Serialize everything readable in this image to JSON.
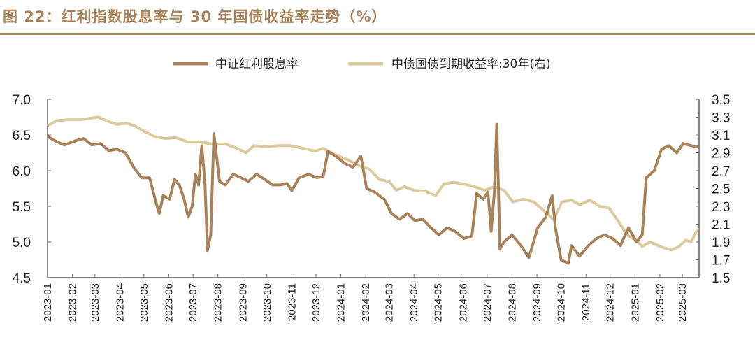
{
  "title": "图 22：红利指数股息率与 30 年国债收益率走势（%）",
  "chart_data": {
    "type": "line",
    "title": "图 22：红利指数股息率与 30 年国债收益率走势（%）",
    "legend_position": "top",
    "grid": false,
    "x_ticks": [
      "2023-01",
      "2023-02",
      "2023-03",
      "2023-04",
      "2023-05",
      "2023-06",
      "2023-07",
      "2023-08",
      "2023-09",
      "2023-10",
      "2023-11",
      "2023-12",
      "2024-01",
      "2024-02",
      "2024-03",
      "2024-04",
      "2024-05",
      "2024-06",
      "2024-07",
      "2024-08",
      "2024-09",
      "2024-10",
      "2024-11",
      "2024-12",
      "2025-01",
      "2025-02",
      "2025-03"
    ],
    "xlim": [
      "2023-01-01",
      "2025-03-20"
    ],
    "y_left": {
      "lim": [
        4.5,
        7.0
      ],
      "ticks": [
        "4.5",
        "5.0",
        "5.5",
        "6.0",
        "6.5",
        "7.0"
      ]
    },
    "y_right": {
      "lim": [
        1.5,
        3.5
      ],
      "ticks": [
        "1.5",
        "1.7",
        "1.9",
        "2.1",
        "2.3",
        "2.5",
        "2.7",
        "2.9",
        "3.1",
        "3.3",
        "3.5"
      ]
    },
    "series": [
      {
        "name": "中证红利股息率",
        "axis": "left",
        "color": "#a8835a",
        "points": [
          [
            "2023-01-01",
            6.48
          ],
          [
            "2023-01-10",
            6.42
          ],
          [
            "2023-01-22",
            6.36
          ],
          [
            "2023-02-05",
            6.42
          ],
          [
            "2023-02-15",
            6.45
          ],
          [
            "2023-02-25",
            6.36
          ],
          [
            "2023-03-08",
            6.38
          ],
          [
            "2023-03-18",
            6.28
          ],
          [
            "2023-03-28",
            6.3
          ],
          [
            "2023-04-08",
            6.25
          ],
          [
            "2023-04-18",
            6.05
          ],
          [
            "2023-04-28",
            5.9
          ],
          [
            "2023-05-08",
            5.9
          ],
          [
            "2023-05-16",
            5.55
          ],
          [
            "2023-05-20",
            5.4
          ],
          [
            "2023-05-25",
            5.65
          ],
          [
            "2023-06-02",
            5.6
          ],
          [
            "2023-06-08",
            5.88
          ],
          [
            "2023-06-14",
            5.8
          ],
          [
            "2023-06-20",
            5.6
          ],
          [
            "2023-06-25",
            5.35
          ],
          [
            "2023-06-30",
            5.5
          ],
          [
            "2023-07-04",
            5.95
          ],
          [
            "2023-07-08",
            5.8
          ],
          [
            "2023-07-12",
            6.35
          ],
          [
            "2023-07-16",
            5.8
          ],
          [
            "2023-07-19",
            4.88
          ],
          [
            "2023-07-23",
            5.1
          ],
          [
            "2023-07-27",
            6.52
          ],
          [
            "2023-08-03",
            5.85
          ],
          [
            "2023-08-10",
            5.8
          ],
          [
            "2023-08-20",
            5.95
          ],
          [
            "2023-08-30",
            5.9
          ],
          [
            "2023-09-08",
            5.85
          ],
          [
            "2023-09-18",
            5.95
          ],
          [
            "2023-09-28",
            5.88
          ],
          [
            "2023-10-08",
            5.8
          ],
          [
            "2023-10-18",
            5.8
          ],
          [
            "2023-10-26",
            5.82
          ],
          [
            "2023-11-01",
            5.72
          ],
          [
            "2023-11-10",
            5.9
          ],
          [
            "2023-11-22",
            5.95
          ],
          [
            "2023-12-02",
            5.9
          ],
          [
            "2023-12-10",
            5.92
          ],
          [
            "2023-12-16",
            6.27
          ],
          [
            "2023-12-26",
            6.2
          ],
          [
            "2024-01-06",
            6.1
          ],
          [
            "2024-01-16",
            6.05
          ],
          [
            "2024-01-26",
            6.2
          ],
          [
            "2024-02-02",
            5.75
          ],
          [
            "2024-02-12",
            5.7
          ],
          [
            "2024-02-24",
            5.6
          ],
          [
            "2024-03-04",
            5.4
          ],
          [
            "2024-03-14",
            5.32
          ],
          [
            "2024-03-24",
            5.4
          ],
          [
            "2024-04-02",
            5.3
          ],
          [
            "2024-04-12",
            5.32
          ],
          [
            "2024-04-22",
            5.2
          ],
          [
            "2024-05-02",
            5.1
          ],
          [
            "2024-05-12",
            5.2
          ],
          [
            "2024-05-22",
            5.15
          ],
          [
            "2024-06-02",
            5.05
          ],
          [
            "2024-06-12",
            5.08
          ],
          [
            "2024-06-18",
            5.68
          ],
          [
            "2024-06-26",
            5.6
          ],
          [
            "2024-07-02",
            5.7
          ],
          [
            "2024-07-06",
            5.15
          ],
          [
            "2024-07-10",
            5.7
          ],
          [
            "2024-07-13",
            6.65
          ],
          [
            "2024-07-17",
            4.9
          ],
          [
            "2024-07-22",
            5.0
          ],
          [
            "2024-08-01",
            5.1
          ],
          [
            "2024-08-12",
            4.95
          ],
          [
            "2024-08-22",
            4.78
          ],
          [
            "2024-09-02",
            5.2
          ],
          [
            "2024-09-12",
            5.35
          ],
          [
            "2024-09-20",
            5.65
          ],
          [
            "2024-09-24",
            5.2
          ],
          [
            "2024-10-01",
            4.75
          ],
          [
            "2024-10-10",
            4.7
          ],
          [
            "2024-10-14",
            4.95
          ],
          [
            "2024-10-24",
            4.8
          ],
          [
            "2024-11-04",
            4.95
          ],
          [
            "2024-11-14",
            5.05
          ],
          [
            "2024-11-24",
            5.1
          ],
          [
            "2024-12-04",
            5.05
          ],
          [
            "2024-12-14",
            4.95
          ],
          [
            "2024-12-24",
            5.2
          ],
          [
            "2025-01-03",
            5.0
          ],
          [
            "2025-01-10",
            5.1
          ],
          [
            "2025-01-15",
            5.9
          ],
          [
            "2025-01-25",
            6.0
          ],
          [
            "2025-02-03",
            6.3
          ],
          [
            "2025-02-12",
            6.35
          ],
          [
            "2025-02-22",
            6.25
          ],
          [
            "2025-03-02",
            6.38
          ],
          [
            "2025-03-12",
            6.35
          ],
          [
            "2025-03-20",
            6.33
          ]
        ]
      },
      {
        "name": "中债国债到期收益率:30年(右)",
        "axis": "right",
        "color": "#dcc99c",
        "points": [
          [
            "2023-01-01",
            3.2
          ],
          [
            "2023-01-12",
            3.26
          ],
          [
            "2023-01-25",
            3.27
          ],
          [
            "2023-02-10",
            3.27
          ],
          [
            "2023-02-25",
            3.29
          ],
          [
            "2023-03-05",
            3.3
          ],
          [
            "2023-03-18",
            3.25
          ],
          [
            "2023-03-28",
            3.22
          ],
          [
            "2023-04-10",
            3.23
          ],
          [
            "2023-04-20",
            3.2
          ],
          [
            "2023-05-01",
            3.14
          ],
          [
            "2023-05-15",
            3.08
          ],
          [
            "2023-05-28",
            3.06
          ],
          [
            "2023-06-10",
            3.07
          ],
          [
            "2023-06-25",
            3.02
          ],
          [
            "2023-07-10",
            3.02
          ],
          [
            "2023-07-25",
            3.0
          ],
          [
            "2023-08-10",
            3.0
          ],
          [
            "2023-08-25",
            2.95
          ],
          [
            "2023-09-05",
            2.9
          ],
          [
            "2023-09-15",
            2.98
          ],
          [
            "2023-09-30",
            2.97
          ],
          [
            "2023-10-15",
            2.98
          ],
          [
            "2023-10-30",
            2.98
          ],
          [
            "2023-11-15",
            2.95
          ],
          [
            "2023-11-30",
            2.92
          ],
          [
            "2023-12-10",
            2.95
          ],
          [
            "2023-12-25",
            2.88
          ],
          [
            "2024-01-10",
            2.82
          ],
          [
            "2024-01-25",
            2.75
          ],
          [
            "2024-02-05",
            2.72
          ],
          [
            "2024-02-18",
            2.6
          ],
          [
            "2024-03-01",
            2.58
          ],
          [
            "2024-03-10",
            2.48
          ],
          [
            "2024-03-20",
            2.52
          ],
          [
            "2024-04-01",
            2.48
          ],
          [
            "2024-04-15",
            2.47
          ],
          [
            "2024-04-28",
            2.42
          ],
          [
            "2024-05-08",
            2.55
          ],
          [
            "2024-05-20",
            2.57
          ],
          [
            "2024-06-02",
            2.55
          ],
          [
            "2024-06-15",
            2.52
          ],
          [
            "2024-06-28",
            2.48
          ],
          [
            "2024-07-10",
            2.52
          ],
          [
            "2024-07-22",
            2.48
          ],
          [
            "2024-08-02",
            2.35
          ],
          [
            "2024-08-15",
            2.38
          ],
          [
            "2024-08-28",
            2.35
          ],
          [
            "2024-09-10",
            2.25
          ],
          [
            "2024-09-22",
            2.15
          ],
          [
            "2024-10-02",
            2.35
          ],
          [
            "2024-10-14",
            2.37
          ],
          [
            "2024-10-24",
            2.32
          ],
          [
            "2024-11-06",
            2.37
          ],
          [
            "2024-11-18",
            2.3
          ],
          [
            "2024-11-30",
            2.28
          ],
          [
            "2024-12-10",
            2.15
          ],
          [
            "2024-12-22",
            1.98
          ],
          [
            "2025-01-02",
            1.92
          ],
          [
            "2025-01-10",
            1.85
          ],
          [
            "2025-01-20",
            1.9
          ],
          [
            "2025-02-01",
            1.85
          ],
          [
            "2025-02-15",
            1.81
          ],
          [
            "2025-02-25",
            1.85
          ],
          [
            "2025-03-05",
            1.92
          ],
          [
            "2025-03-12",
            1.9
          ],
          [
            "2025-03-20",
            2.05
          ]
        ]
      }
    ]
  }
}
